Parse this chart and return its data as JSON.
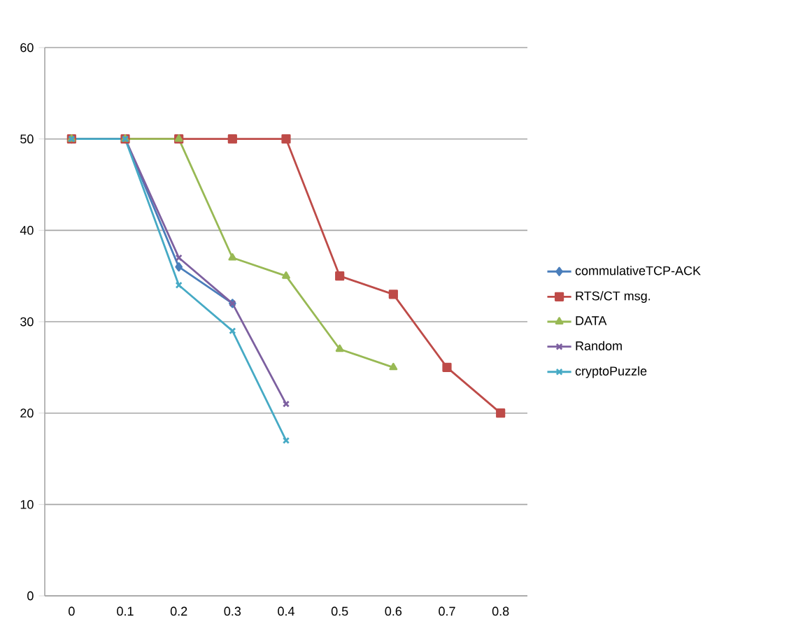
{
  "chart_data": {
    "type": "line",
    "categories": [
      "0",
      "0.1",
      "0.2",
      "0.3",
      "0.4",
      "0.5",
      "0.6",
      "0.7",
      "0.8"
    ],
    "series": [
      {
        "name": "commulativeTCP-ACK",
        "color": "#4a7ebb",
        "marker": "diamond",
        "values": [
          50,
          50,
          36,
          32,
          null,
          null,
          null,
          null,
          null
        ]
      },
      {
        "name": "RTS/CT msg.",
        "color": "#be4b48",
        "marker": "square",
        "values": [
          50,
          50,
          50,
          50,
          50,
          35,
          33,
          25,
          20
        ]
      },
      {
        "name": "DATA",
        "color": "#98b954",
        "marker": "triangle",
        "values": [
          50,
          50,
          50,
          37,
          35,
          27,
          25,
          null,
          null
        ]
      },
      {
        "name": "Random",
        "color": "#7d60a0",
        "marker": "cross",
        "values": [
          50,
          50,
          37,
          32,
          21,
          null,
          null,
          null,
          null
        ]
      },
      {
        "name": "cryptoPuzzle",
        "color": "#46aac5",
        "marker": "cross",
        "values": [
          50,
          50,
          34,
          29,
          17,
          null,
          null,
          null,
          null
        ]
      }
    ],
    "ylim": [
      0,
      60
    ],
    "yticks": [
      0,
      10,
      20,
      30,
      40,
      50,
      60
    ],
    "grid": "y",
    "legend": "right"
  }
}
